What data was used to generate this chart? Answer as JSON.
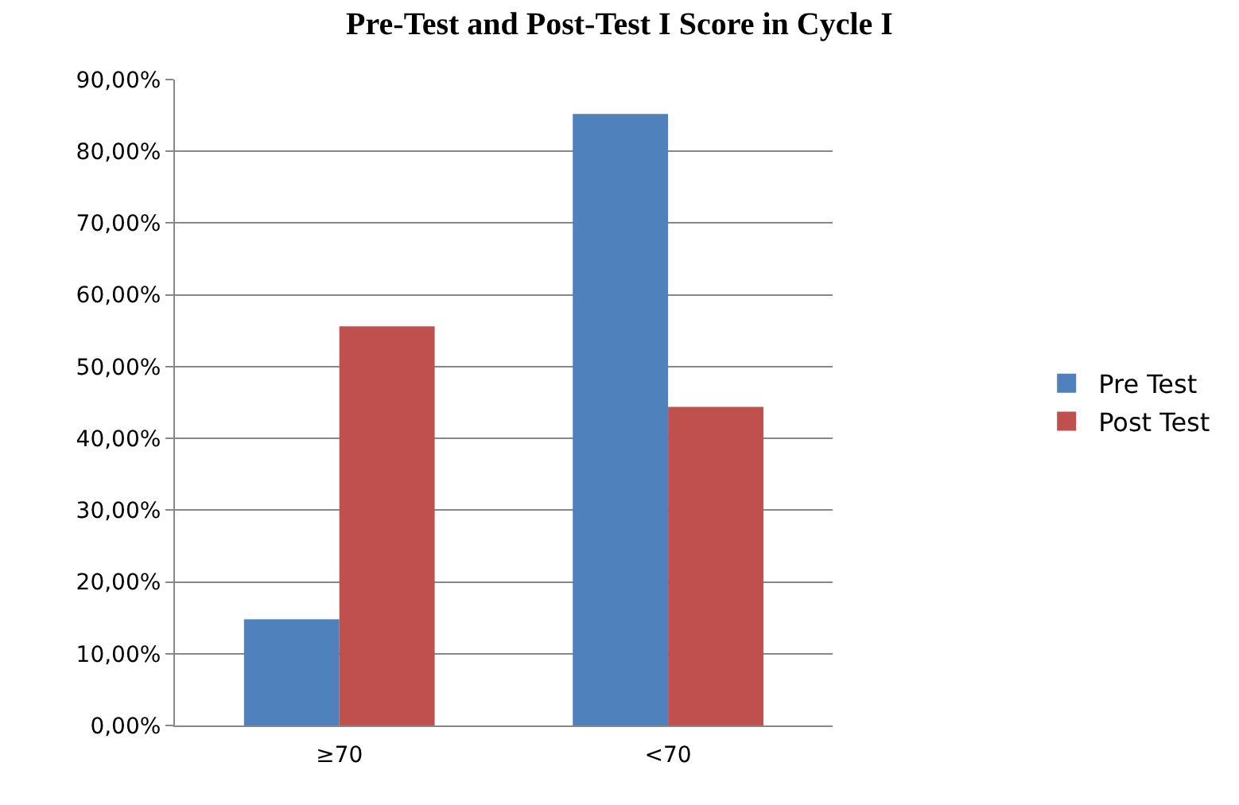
{
  "chart_data": {
    "type": "bar",
    "title": "Pre-Test and Post-Test I Score in Cycle I",
    "categories": [
      "≥70",
      "<70"
    ],
    "series": [
      {
        "name": "Pre Test",
        "color": "#4f81bd",
        "values": [
          14.8,
          85.2
        ]
      },
      {
        "name": "Post Test",
        "color": "#c0504d",
        "values": [
          55.6,
          44.4
        ]
      }
    ],
    "ylim": [
      0,
      90
    ],
    "yticks": [
      {
        "value": 0,
        "label": "0,00%"
      },
      {
        "value": 10,
        "label": "10,00%"
      },
      {
        "value": 20,
        "label": "20,00%"
      },
      {
        "value": 30,
        "label": "30,00%"
      },
      {
        "value": 40,
        "label": "40,00%"
      },
      {
        "value": 50,
        "label": "50,00%"
      },
      {
        "value": 60,
        "label": "60,00%"
      },
      {
        "value": 70,
        "label": "70,00%"
      },
      {
        "value": 80,
        "label": "80,00%"
      },
      {
        "value": 90,
        "label": "90,00%"
      }
    ],
    "grid": "y",
    "legend": "right"
  }
}
